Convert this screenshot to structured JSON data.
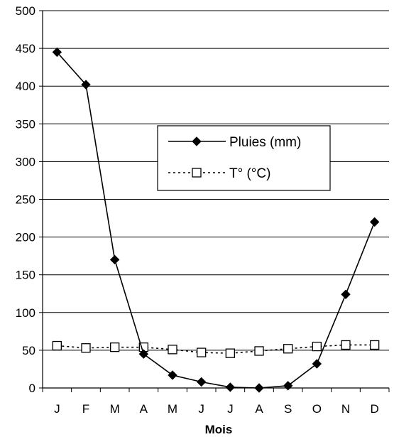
{
  "chart_data": {
    "type": "line",
    "title": "",
    "xlabel": "Mois",
    "ylabel": "",
    "categories": [
      "J",
      "F",
      "M",
      "A",
      "M",
      "J",
      "J",
      "A",
      "S",
      "O",
      "N",
      "D"
    ],
    "ylim": [
      0,
      500
    ],
    "yticks": [
      0,
      50,
      100,
      150,
      200,
      250,
      300,
      350,
      400,
      450,
      500
    ],
    "grid": "horizontal",
    "legend_position": "center",
    "series": [
      {
        "name": "Pluies (mm)",
        "values": [
          445,
          402,
          170,
          45,
          17,
          8,
          1,
          0,
          3,
          32,
          124,
          220
        ],
        "marker": "diamond",
        "line": "solid",
        "color": "#000000"
      },
      {
        "name": "T° (°C)",
        "values": [
          56,
          53,
          54,
          54,
          51,
          47,
          46,
          49,
          52,
          55,
          57,
          57
        ],
        "marker": "square-open",
        "line": "dotted",
        "color": "#000000"
      }
    ]
  }
}
